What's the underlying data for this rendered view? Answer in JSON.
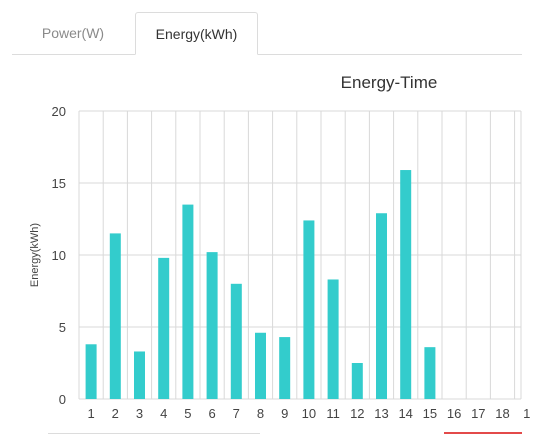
{
  "tabs": [
    {
      "label": "Power(W)",
      "active": false
    },
    {
      "label": "Energy(kWh)",
      "active": true
    }
  ],
  "colors": {
    "bar": "#33cccc",
    "grid": "#d9d9d9",
    "text": "#444444",
    "accent_line": "#e34a4a"
  },
  "chart_data": {
    "type": "bar",
    "title": "Energy-Time",
    "xlabel": "",
    "ylabel": "Energy(kWh)",
    "ylim": [
      0,
      20
    ],
    "yticks": [
      0,
      5,
      10,
      15,
      20
    ],
    "grid": true,
    "categories": [
      "1",
      "2",
      "3",
      "4",
      "5",
      "6",
      "7",
      "8",
      "9",
      "10",
      "11",
      "12",
      "13",
      "14",
      "15",
      "16",
      "17",
      "18",
      "1"
    ],
    "values": [
      3.8,
      11.5,
      3.3,
      9.8,
      13.5,
      10.2,
      8.0,
      4.6,
      4.3,
      12.4,
      8.3,
      2.5,
      12.9,
      15.9,
      3.6,
      0,
      0,
      0,
      0
    ]
  }
}
